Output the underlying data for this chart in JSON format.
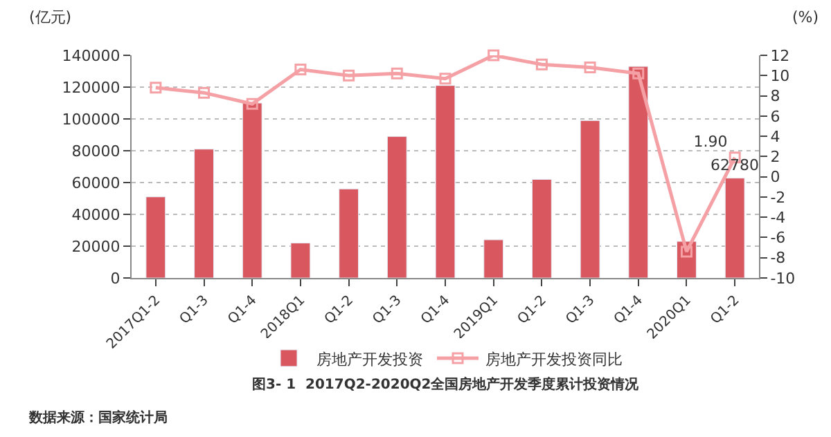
{
  "chart_data": {
    "type": "bar",
    "title": "图3- 1  2017Q2-2020Q2全国房地产开发季度累计投资情况",
    "ylabel": "(亿元)",
    "y2label": "(%)",
    "annotations": [
      "数据来源：国家统计局"
    ],
    "categories": [
      "2017Q1-2",
      "Q1-3",
      "Q1-4",
      "2018Q1",
      "Q1-2",
      "Q1-3",
      "Q1-4",
      "2019Q1",
      "Q1-2",
      "Q1-3",
      "Q1-4",
      "2020Q1",
      "Q1-2"
    ],
    "series": [
      {
        "name": "房地产开发投资",
        "color": "#d9575f",
        "values": [
          51000,
          81000,
          110000,
          22000,
          56000,
          89000,
          121000,
          24000,
          62000,
          99000,
          133000,
          23000,
          62780
        ],
        "value_labels": [
          null,
          null,
          null,
          null,
          null,
          null,
          null,
          null,
          null,
          null,
          null,
          null,
          "62780"
        ]
      },
      {
        "name": "房地产开发投资同比",
        "type": "line",
        "axis": "y2",
        "color": "#f4a0a4",
        "marker": "square",
        "values": [
          8.8,
          8.3,
          7.2,
          10.6,
          10.0,
          10.2,
          9.7,
          12.0,
          11.1,
          10.8,
          10.2,
          -7.4,
          1.9
        ],
        "value_labels": [
          null,
          null,
          null,
          null,
          null,
          null,
          null,
          null,
          null,
          null,
          null,
          null,
          "1.90"
        ]
      }
    ],
    "ylim": [
      0,
      140000
    ],
    "yticks": [
      0,
      20000,
      40000,
      60000,
      80000,
      100000,
      120000,
      140000
    ],
    "y2lim": [
      -10,
      12
    ],
    "y2ticks": [
      -10,
      -8,
      -6,
      -4,
      -2,
      0,
      2,
      4,
      6,
      8,
      10,
      12
    ],
    "grid": "y",
    "legend": "bottom"
  }
}
